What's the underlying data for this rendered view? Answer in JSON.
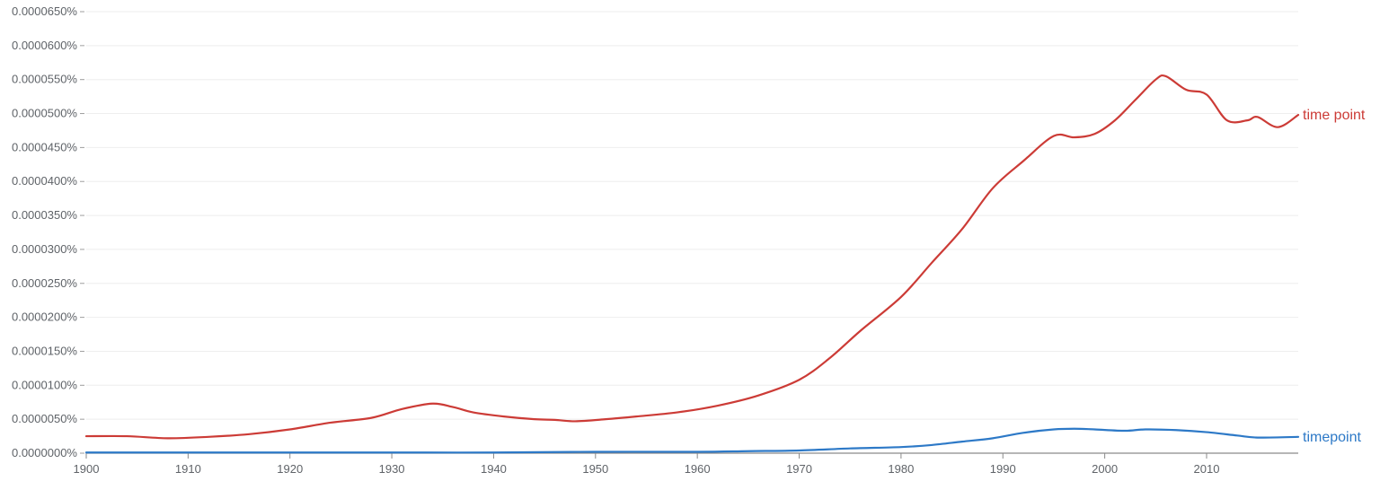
{
  "chart_data": {
    "type": "line",
    "title": "",
    "xlabel": "",
    "ylabel": "",
    "xlim": [
      1900,
      2019
    ],
    "ylim": [
      0,
      6.5e-07
    ],
    "grid": true,
    "legend": "end-of-line labels",
    "x_ticks": [
      1900,
      1910,
      1920,
      1930,
      1940,
      1950,
      1960,
      1970,
      1980,
      1990,
      2000,
      2010
    ],
    "x_tick_labels": [
      "1900",
      "1910",
      "1920",
      "1930",
      "1940",
      "1950",
      "1960",
      "1970",
      "1980",
      "1990",
      "2000",
      "2010"
    ],
    "y_ticks": [
      0,
      5e-08,
      1e-07,
      1.5e-07,
      2e-07,
      2.5e-07,
      3e-07,
      3.5e-07,
      4e-07,
      4.5e-07,
      5e-07,
      5.5e-07,
      6e-07,
      6.5e-07
    ],
    "y_tick_labels": [
      "0.0000000%",
      "0.0000050%",
      "0.0000100%",
      "0.0000150%",
      "0.0000200%",
      "0.0000250%",
      "0.0000300%",
      "0.0000350%",
      "0.0000400%",
      "0.0000450%",
      "0.0000500%",
      "0.0000550%",
      "0.0000600%",
      "0.0000650%"
    ],
    "series": [
      {
        "name": "time point",
        "color": "#cc3b36",
        "x": [
          1900,
          1904,
          1908,
          1912,
          1916,
          1920,
          1924,
          1928,
          1931,
          1934,
          1936,
          1938,
          1941,
          1944,
          1946,
          1948,
          1951,
          1954,
          1958,
          1962,
          1966,
          1970,
          1973,
          1976,
          1980,
          1983,
          1986,
          1989,
          1992,
          1995,
          1997,
          1999,
          2001,
          2003,
          2005,
          2006,
          2008,
          2010,
          2012,
          2014,
          2015,
          2017,
          2019
        ],
        "values": [
          2.5e-08,
          2.5e-08,
          2.2e-08,
          2.4e-08,
          2.8e-08,
          3.5e-08,
          4.5e-08,
          5.2e-08,
          6.5e-08,
          7.3e-08,
          6.8e-08,
          6e-08,
          5.4e-08,
          5e-08,
          4.9e-08,
          4.7e-08,
          5e-08,
          5.4e-08,
          6e-08,
          7e-08,
          8.5e-08,
          1.08e-07,
          1.4e-07,
          1.8e-07,
          2.3e-07,
          2.8e-07,
          3.3e-07,
          3.9e-07,
          4.3e-07,
          4.67e-07,
          4.65e-07,
          4.7e-07,
          4.9e-07,
          5.2e-07,
          5.5e-07,
          5.55e-07,
          5.35e-07,
          5.28e-07,
          4.9e-07,
          4.9e-07,
          4.95e-07,
          4.8e-07,
          4.98e-07
        ]
      },
      {
        "name": "timepoint",
        "color": "#2d79c7",
        "x": [
          1900,
          1910,
          1920,
          1930,
          1940,
          1950,
          1960,
          1965,
          1970,
          1975,
          1980,
          1983,
          1986,
          1989,
          1992,
          1995,
          1997,
          1999,
          2002,
          2004,
          2007,
          2010,
          2013,
          2015,
          2019
        ],
        "values": [
          1e-09,
          1e-09,
          1e-09,
          1e-09,
          1e-09,
          2e-09,
          2e-09,
          3e-09,
          4e-09,
          7e-09,
          9e-09,
          1.2e-08,
          1.7e-08,
          2.2e-08,
          3e-08,
          3.5e-08,
          3.6e-08,
          3.5e-08,
          3.3e-08,
          3.5e-08,
          3.4e-08,
          3.1e-08,
          2.6e-08,
          2.3e-08,
          2.4e-08
        ]
      }
    ]
  }
}
